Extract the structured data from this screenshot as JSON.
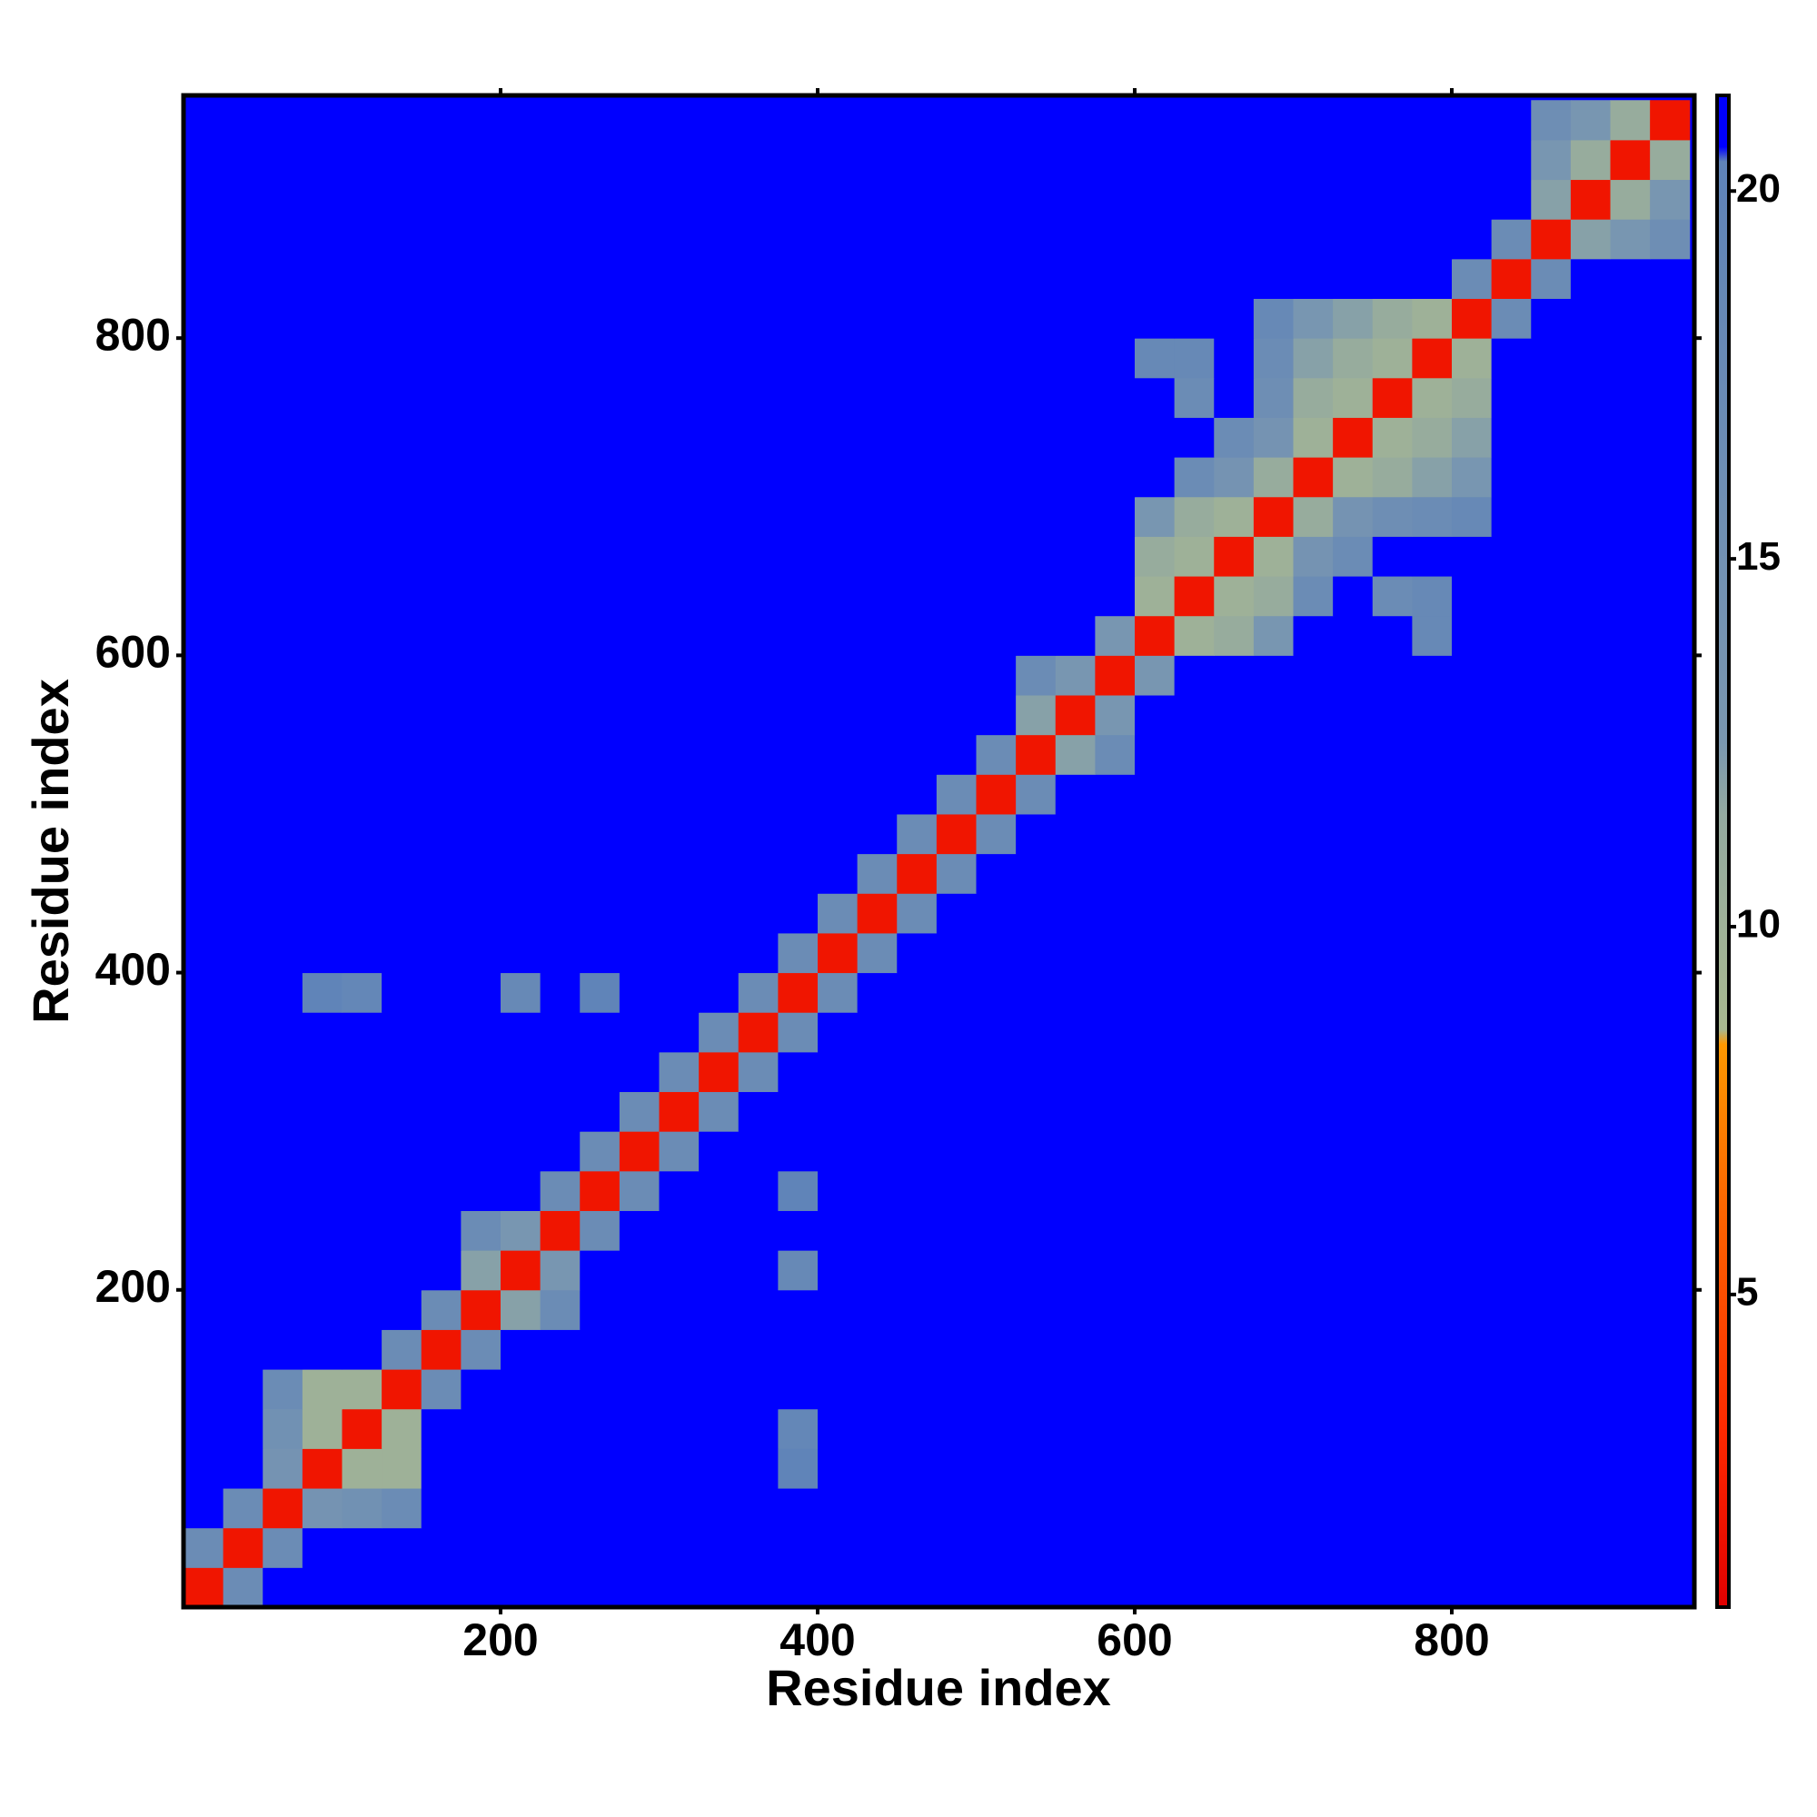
{
  "chart_data": {
    "type": "heatmap",
    "x_label": "Residue index",
    "y_label": "Residue index",
    "x": [
      12.5,
      37.5,
      62.5,
      87.5,
      112.5,
      137.5,
      162.5,
      187.5,
      212.5,
      237.5,
      262.5,
      287.5,
      312.5,
      337.5,
      362.5,
      387.5,
      412.5,
      437.5,
      462.5,
      487.5,
      512.5,
      537.5,
      562.5,
      587.5,
      612.5,
      637.5,
      662.5,
      687.5,
      712.5,
      737.5,
      762.5,
      787.5,
      812.5,
      837.5,
      862.5,
      887.5,
      912.5,
      937.5
    ],
    "y": [
      12.5,
      37.5,
      62.5,
      87.5,
      112.5,
      137.5,
      162.5,
      187.5,
      212.5,
      237.5,
      262.5,
      287.5,
      312.5,
      337.5,
      362.5,
      387.5,
      412.5,
      437.5,
      462.5,
      487.5,
      512.5,
      537.5,
      562.5,
      587.5,
      612.5,
      637.5,
      662.5,
      687.5,
      712.5,
      737.5,
      762.5,
      787.5,
      812.5,
      837.5,
      862.5,
      887.5,
      912.5,
      937.5
    ],
    "z": [
      [
        2,
        17,
        21,
        21,
        21,
        21,
        21,
        21,
        21,
        21,
        21,
        21,
        21,
        21,
        21,
        21,
        21,
        21,
        21,
        21,
        21,
        21,
        21,
        21,
        21,
        21,
        21,
        21,
        21,
        21,
        21,
        21,
        21,
        21,
        21,
        21,
        21,
        21
      ],
      [
        17,
        2,
        17,
        21,
        21,
        21,
        21,
        21,
        21,
        21,
        21,
        21,
        21,
        21,
        21,
        21,
        21,
        21,
        21,
        21,
        21,
        21,
        21,
        21,
        21,
        21,
        21,
        21,
        21,
        21,
        21,
        21,
        21,
        21,
        21,
        21,
        21,
        21
      ],
      [
        21,
        17,
        2,
        14,
        15,
        17,
        21,
        21,
        21,
        21,
        21,
        21,
        21,
        21,
        21,
        21,
        21,
        21,
        21,
        21,
        21,
        21,
        21,
        21,
        21,
        21,
        21,
        21,
        21,
        21,
        21,
        21,
        21,
        21,
        21,
        21,
        21,
        21
      ],
      [
        21,
        21,
        14,
        2,
        10,
        10,
        21,
        21,
        21,
        21,
        21,
        21,
        21,
        21,
        21,
        20,
        21,
        21,
        21,
        21,
        21,
        21,
        21,
        21,
        21,
        21,
        21,
        21,
        21,
        21,
        21,
        21,
        21,
        21,
        21,
        21,
        21,
        21
      ],
      [
        21,
        21,
        15,
        10,
        2,
        10,
        21,
        21,
        21,
        21,
        21,
        21,
        21,
        21,
        21,
        19,
        21,
        21,
        21,
        21,
        21,
        21,
        21,
        21,
        21,
        21,
        21,
        21,
        21,
        21,
        21,
        21,
        21,
        21,
        21,
        21,
        21,
        21
      ],
      [
        21,
        21,
        17,
        10,
        10,
        2,
        17,
        21,
        21,
        21,
        21,
        21,
        21,
        21,
        21,
        21,
        21,
        21,
        21,
        21,
        21,
        21,
        21,
        21,
        21,
        21,
        21,
        21,
        21,
        21,
        21,
        21,
        21,
        21,
        21,
        21,
        21,
        21
      ],
      [
        21,
        21,
        21,
        21,
        21,
        17,
        2,
        17,
        21,
        21,
        21,
        21,
        21,
        21,
        21,
        21,
        21,
        21,
        21,
        21,
        21,
        21,
        21,
        21,
        21,
        21,
        21,
        21,
        21,
        21,
        21,
        21,
        21,
        21,
        21,
        21,
        21,
        21
      ],
      [
        21,
        21,
        21,
        21,
        21,
        21,
        17,
        2,
        12,
        17,
        21,
        21,
        21,
        21,
        21,
        21,
        21,
        21,
        21,
        21,
        21,
        21,
        21,
        21,
        21,
        21,
        21,
        21,
        21,
        21,
        21,
        21,
        21,
        21,
        21,
        21,
        21,
        21
      ],
      [
        21,
        21,
        21,
        21,
        21,
        21,
        21,
        12,
        2,
        13,
        21,
        21,
        21,
        21,
        21,
        18,
        21,
        21,
        21,
        21,
        21,
        21,
        21,
        21,
        21,
        21,
        21,
        21,
        21,
        21,
        21,
        21,
        21,
        21,
        21,
        21,
        21,
        21
      ],
      [
        21,
        21,
        21,
        21,
        21,
        21,
        21,
        17,
        13,
        2,
        17,
        21,
        21,
        21,
        21,
        21,
        21,
        21,
        21,
        21,
        21,
        21,
        21,
        21,
        21,
        21,
        21,
        21,
        21,
        21,
        21,
        21,
        21,
        21,
        21,
        21,
        21,
        21
      ],
      [
        21,
        21,
        21,
        21,
        21,
        21,
        21,
        21,
        21,
        17,
        2,
        17,
        21,
        21,
        21,
        20,
        21,
        21,
        21,
        21,
        21,
        21,
        21,
        21,
        21,
        21,
        21,
        21,
        21,
        21,
        21,
        21,
        21,
        21,
        21,
        21,
        21,
        21
      ],
      [
        21,
        21,
        21,
        21,
        21,
        21,
        21,
        21,
        21,
        21,
        17,
        2,
        17,
        21,
        21,
        21,
        21,
        21,
        21,
        21,
        21,
        21,
        21,
        21,
        21,
        21,
        21,
        21,
        21,
        21,
        21,
        21,
        21,
        21,
        21,
        21,
        21,
        21
      ],
      [
        21,
        21,
        21,
        21,
        21,
        21,
        21,
        21,
        21,
        21,
        21,
        17,
        2,
        17,
        21,
        21,
        21,
        21,
        21,
        21,
        21,
        21,
        21,
        21,
        21,
        21,
        21,
        21,
        21,
        21,
        21,
        21,
        21,
        21,
        21,
        21,
        21,
        21
      ],
      [
        21,
        21,
        21,
        21,
        21,
        21,
        21,
        21,
        21,
        21,
        21,
        21,
        17,
        2,
        17,
        21,
        21,
        21,
        21,
        21,
        21,
        21,
        21,
        21,
        21,
        21,
        21,
        21,
        21,
        21,
        21,
        21,
        21,
        21,
        21,
        21,
        21,
        21
      ],
      [
        21,
        21,
        21,
        21,
        21,
        21,
        21,
        21,
        21,
        21,
        21,
        21,
        21,
        17,
        2,
        17,
        21,
        21,
        21,
        21,
        21,
        21,
        21,
        21,
        21,
        21,
        21,
        21,
        21,
        21,
        21,
        21,
        21,
        21,
        21,
        21,
        21,
        21
      ],
      [
        21,
        21,
        21,
        20,
        19,
        21,
        21,
        21,
        18,
        21,
        20,
        21,
        21,
        21,
        17,
        2,
        17,
        21,
        21,
        21,
        21,
        21,
        21,
        21,
        21,
        21,
        21,
        21,
        21,
        21,
        21,
        21,
        21,
        21,
        21,
        21,
        21,
        21
      ],
      [
        21,
        21,
        21,
        21,
        21,
        21,
        21,
        21,
        21,
        21,
        21,
        21,
        21,
        21,
        21,
        17,
        2,
        17,
        21,
        21,
        21,
        21,
        21,
        21,
        21,
        21,
        21,
        21,
        21,
        21,
        21,
        21,
        21,
        21,
        21,
        21,
        21,
        21
      ],
      [
        21,
        21,
        21,
        21,
        21,
        21,
        21,
        21,
        21,
        21,
        21,
        21,
        21,
        21,
        21,
        21,
        17,
        2,
        17,
        21,
        21,
        21,
        21,
        21,
        21,
        21,
        21,
        21,
        21,
        21,
        21,
        21,
        21,
        21,
        21,
        21,
        21,
        21
      ],
      [
        21,
        21,
        21,
        21,
        21,
        21,
        21,
        21,
        21,
        21,
        21,
        21,
        21,
        21,
        21,
        21,
        21,
        17,
        2,
        17,
        21,
        21,
        21,
        21,
        21,
        21,
        21,
        21,
        21,
        21,
        21,
        21,
        21,
        21,
        21,
        21,
        21,
        21
      ],
      [
        21,
        21,
        21,
        21,
        21,
        21,
        21,
        21,
        21,
        21,
        21,
        21,
        21,
        21,
        21,
        21,
        21,
        21,
        17,
        2,
        17,
        21,
        21,
        21,
        21,
        21,
        21,
        21,
        21,
        21,
        21,
        21,
        21,
        21,
        21,
        21,
        21,
        21
      ],
      [
        21,
        21,
        21,
        21,
        21,
        21,
        21,
        21,
        21,
        21,
        21,
        21,
        21,
        21,
        21,
        21,
        21,
        21,
        21,
        17,
        2,
        17,
        21,
        21,
        21,
        21,
        21,
        21,
        21,
        21,
        21,
        21,
        21,
        21,
        21,
        21,
        21,
        21
      ],
      [
        21,
        21,
        21,
        21,
        21,
        21,
        21,
        21,
        21,
        21,
        21,
        21,
        21,
        21,
        21,
        21,
        21,
        21,
        21,
        21,
        17,
        2,
        12,
        17,
        21,
        21,
        21,
        21,
        21,
        21,
        21,
        21,
        21,
        21,
        21,
        21,
        21,
        21
      ],
      [
        21,
        21,
        21,
        21,
        21,
        21,
        21,
        21,
        21,
        21,
        21,
        21,
        21,
        21,
        21,
        21,
        21,
        21,
        21,
        21,
        21,
        12,
        2,
        13,
        21,
        21,
        21,
        21,
        21,
        21,
        21,
        21,
        21,
        21,
        21,
        21,
        21,
        21
      ],
      [
        21,
        21,
        21,
        21,
        21,
        21,
        21,
        21,
        21,
        21,
        21,
        21,
        21,
        21,
        21,
        21,
        21,
        21,
        21,
        21,
        21,
        17,
        13,
        2,
        13,
        21,
        21,
        21,
        21,
        21,
        21,
        21,
        21,
        21,
        21,
        21,
        21,
        21
      ],
      [
        21,
        21,
        21,
        21,
        21,
        21,
        21,
        21,
        21,
        21,
        21,
        21,
        21,
        21,
        21,
        21,
        21,
        21,
        21,
        21,
        21,
        21,
        21,
        13,
        2,
        10,
        11,
        13,
        21,
        21,
        21,
        18,
        21,
        21,
        21,
        21,
        21,
        21
      ],
      [
        21,
        21,
        21,
        21,
        21,
        21,
        21,
        21,
        21,
        21,
        21,
        21,
        21,
        21,
        21,
        21,
        21,
        21,
        21,
        21,
        21,
        21,
        21,
        21,
        10,
        2,
        10,
        11,
        17,
        21,
        17,
        18,
        21,
        21,
        21,
        21,
        21,
        21
      ],
      [
        21,
        21,
        21,
        21,
        21,
        21,
        21,
        21,
        21,
        21,
        21,
        21,
        21,
        21,
        21,
        21,
        21,
        21,
        21,
        21,
        21,
        21,
        21,
        21,
        11,
        10,
        2,
        10,
        14,
        17,
        21,
        21,
        21,
        21,
        21,
        21,
        21,
        21
      ],
      [
        21,
        21,
        21,
        21,
        21,
        21,
        21,
        21,
        21,
        21,
        21,
        21,
        21,
        21,
        21,
        21,
        21,
        21,
        21,
        21,
        21,
        21,
        21,
        21,
        13,
        11,
        10,
        2,
        11,
        14,
        16,
        17,
        18,
        21,
        21,
        21,
        21,
        21
      ],
      [
        21,
        21,
        21,
        21,
        21,
        21,
        21,
        21,
        21,
        21,
        21,
        21,
        21,
        21,
        21,
        21,
        21,
        21,
        21,
        21,
        21,
        21,
        21,
        21,
        21,
        17,
        14,
        11,
        2,
        10,
        11,
        12,
        13,
        21,
        21,
        21,
        21,
        21
      ],
      [
        21,
        21,
        21,
        21,
        21,
        21,
        21,
        21,
        21,
        21,
        21,
        21,
        21,
        21,
        21,
        21,
        21,
        21,
        21,
        21,
        21,
        21,
        21,
        21,
        21,
        21,
        17,
        14,
        10,
        2,
        10,
        11,
        12,
        21,
        21,
        21,
        21,
        21
      ],
      [
        21,
        21,
        21,
        21,
        21,
        21,
        21,
        21,
        21,
        21,
        21,
        21,
        21,
        21,
        21,
        21,
        21,
        21,
        21,
        21,
        21,
        21,
        21,
        21,
        21,
        17,
        21,
        16,
        11,
        10,
        2,
        10,
        11,
        21,
        21,
        21,
        21,
        21
      ],
      [
        21,
        21,
        21,
        21,
        21,
        21,
        21,
        21,
        21,
        21,
        21,
        21,
        21,
        21,
        21,
        21,
        21,
        21,
        21,
        21,
        21,
        21,
        21,
        21,
        18,
        18,
        21,
        17,
        12,
        11,
        10,
        2,
        10,
        21,
        21,
        21,
        21,
        21
      ],
      [
        21,
        21,
        21,
        21,
        21,
        21,
        21,
        21,
        21,
        21,
        21,
        21,
        21,
        21,
        21,
        21,
        21,
        21,
        21,
        21,
        21,
        21,
        21,
        21,
        21,
        21,
        21,
        18,
        13,
        12,
        11,
        10,
        2,
        17,
        21,
        21,
        21,
        21
      ],
      [
        21,
        21,
        21,
        21,
        21,
        21,
        21,
        21,
        21,
        21,
        21,
        21,
        21,
        21,
        21,
        21,
        21,
        21,
        21,
        21,
        21,
        21,
        21,
        21,
        21,
        21,
        21,
        21,
        21,
        21,
        21,
        21,
        17,
        2,
        17,
        21,
        21,
        21
      ],
      [
        21,
        21,
        21,
        21,
        21,
        21,
        21,
        21,
        21,
        21,
        21,
        21,
        21,
        21,
        21,
        21,
        21,
        21,
        21,
        21,
        21,
        21,
        21,
        21,
        21,
        21,
        21,
        21,
        21,
        21,
        21,
        21,
        21,
        17,
        2,
        12,
        13,
        16
      ],
      [
        21,
        21,
        21,
        21,
        21,
        21,
        21,
        21,
        21,
        21,
        21,
        21,
        21,
        21,
        21,
        21,
        21,
        21,
        21,
        21,
        21,
        21,
        21,
        21,
        21,
        21,
        21,
        21,
        21,
        21,
        21,
        21,
        21,
        21,
        12,
        2,
        11,
        13
      ],
      [
        21,
        21,
        21,
        21,
        21,
        21,
        21,
        21,
        21,
        21,
        21,
        21,
        21,
        21,
        21,
        21,
        21,
        21,
        21,
        21,
        21,
        21,
        21,
        21,
        21,
        21,
        21,
        21,
        21,
        21,
        21,
        21,
        21,
        21,
        13,
        11,
        2,
        11
      ],
      [
        21,
        21,
        21,
        21,
        21,
        21,
        21,
        21,
        21,
        21,
        21,
        21,
        21,
        21,
        21,
        21,
        21,
        21,
        21,
        21,
        21,
        21,
        21,
        21,
        21,
        21,
        21,
        21,
        21,
        21,
        21,
        21,
        21,
        21,
        16,
        13,
        11,
        2
      ]
    ],
    "xlim": [
      0,
      953
    ],
    "ylim": [
      0,
      953
    ],
    "xticks": [
      200,
      400,
      600,
      800
    ],
    "yticks": [
      200,
      400,
      600,
      800
    ],
    "zlim": [
      0.75,
      21.3
    ],
    "zticks": [
      5,
      10,
      15,
      20
    ],
    "colorscale": [
      [
        0.75,
        "#e00000"
      ],
      [
        3.2,
        "#ff2a00"
      ],
      [
        6.4,
        "#ff6a00"
      ],
      [
        8.4,
        "#ff9900"
      ],
      [
        8.6,
        "#a8b890"
      ],
      [
        11.5,
        "#94aaa0"
      ],
      [
        12.5,
        "#7a97b0"
      ],
      [
        20.4,
        "#5f83b8"
      ],
      [
        20.6,
        "#0000ff"
      ],
      [
        21.3,
        "#0000ff"
      ]
    ]
  }
}
